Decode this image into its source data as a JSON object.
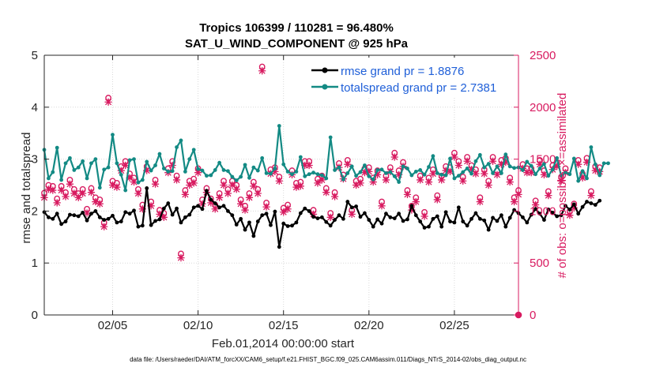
{
  "chart_data": {
    "type": "line",
    "title": "Tropics 106399 / 110281 = 96.480%",
    "subtitle": "SAT_U_WIND_COMPONENT @ 925 hPa",
    "xlabel": "Feb.01,2014 00:00:00 start",
    "ylabel": "rmse and totalspread",
    "ylabel_right": "# of obs: o=possible; ×=assimilated",
    "footer": "data file: /Users/raeder/DAI/ATM_forcXX/CAM6_setup/f.e21.FHIST_BGC.f09_025.CAM6assim.011/Diags_NTrS_2014-02/obs_diag_output.nc",
    "xlim": [
      1,
      28.75
    ],
    "ylim": [
      0,
      5
    ],
    "ylim_right": [
      0,
      2500
    ],
    "x_ticks": [
      5,
      10,
      15,
      20,
      25
    ],
    "x_tick_labels": [
      "02/05",
      "02/10",
      "02/15",
      "02/20",
      "02/25"
    ],
    "y_ticks": [
      "0",
      "1",
      "2",
      "3",
      "4",
      "5"
    ],
    "y_ticks_right": [
      "0",
      "500",
      "1000",
      "1500",
      "2000",
      "2500"
    ],
    "colors": {
      "rmse": "#000000",
      "spread": "#138a84",
      "obs": "#d81b60",
      "legend_text": "#1f5fd8"
    },
    "x_start": 1.0,
    "x_step": 0.25,
    "series": [
      {
        "name": "rmse grand pr = 1.8876",
        "key": "rmse",
        "values": [
          1.98,
          1.88,
          1.85,
          1.95,
          1.75,
          1.8,
          1.93,
          1.92,
          1.9,
          1.97,
          1.82,
          1.95,
          2.0,
          1.88,
          1.83,
          1.85,
          1.91,
          1.78,
          1.8,
          1.98,
          1.95,
          2.01,
          1.7,
          1.72,
          2.44,
          1.73,
          1.81,
          1.84,
          2.05,
          2.15,
          1.93,
          2.05,
          1.78,
          1.88,
          1.93,
          2.07,
          2.1,
          2.04,
          2.39,
          2.22,
          2.15,
          2.07,
          2.1,
          2.0,
          1.92,
          1.74,
          1.85,
          1.64,
          1.78,
          1.52,
          1.8,
          1.92,
          1.95,
          1.73,
          1.99,
          1.31,
          1.76,
          1.71,
          1.72,
          1.78,
          1.96,
          2.05,
          2.0,
          1.89,
          1.86,
          1.88,
          1.79,
          1.72,
          1.83,
          1.92,
          1.85,
          2.18,
          2.07,
          2.09,
          1.89,
          1.96,
          1.83,
          1.7,
          1.84,
          1.76,
          1.95,
          1.88,
          1.86,
          1.95,
          1.81,
          1.84,
          2.1,
          1.92,
          1.8,
          1.68,
          1.7,
          1.85,
          1.9,
          1.7,
          1.98,
          1.8,
          1.78,
          2.07,
          1.8,
          1.72,
          1.85,
          1.96,
          1.85,
          1.82,
          1.64,
          1.87,
          1.81,
          1.92,
          1.7,
          1.87,
          2.02,
          1.96,
          1.88,
          1.78,
          1.93,
          2.04,
          1.95,
          1.83,
          2.03,
          1.97,
          1.9,
          1.92,
          2.1,
          2.03,
          2.13,
          1.95,
          2.08,
          2.18,
          2.15,
          2.12,
          2.2
        ]
      },
      {
        "name": "totalspread grand pr = 2.7381",
        "key": "spread",
        "values": [
          3.18,
          2.63,
          2.75,
          3.22,
          2.6,
          2.92,
          3.02,
          2.79,
          2.84,
          2.96,
          2.63,
          2.92,
          3.0,
          2.45,
          2.8,
          2.84,
          3.47,
          2.92,
          2.7,
          2.4,
          2.98,
          3.0,
          2.55,
          2.6,
          2.95,
          2.78,
          2.88,
          3.1,
          2.82,
          2.76,
          2.77,
          3.23,
          3.36,
          2.76,
          3.0,
          3.18,
          2.81,
          2.78,
          2.68,
          2.69,
          2.79,
          2.93,
          2.79,
          2.77,
          2.66,
          2.59,
          2.66,
          2.89,
          2.64,
          2.84,
          2.78,
          3.02,
          2.73,
          2.72,
          2.82,
          3.64,
          2.9,
          2.76,
          2.71,
          2.76,
          3.04,
          2.67,
          2.71,
          2.74,
          2.71,
          2.69,
          2.63,
          3.42,
          2.79,
          2.84,
          2.61,
          2.73,
          2.86,
          2.68,
          2.75,
          2.88,
          2.67,
          2.61,
          2.79,
          2.8,
          2.73,
          2.75,
          2.67,
          2.56,
          2.86,
          2.82,
          2.69,
          2.76,
          2.79,
          2.7,
          2.85,
          3.06,
          2.73,
          2.7,
          2.69,
          3.01,
          2.63,
          2.68,
          2.75,
          2.82,
          2.72,
          2.96,
          3.08,
          2.84,
          2.91,
          2.73,
          2.86,
          2.73,
          3.09,
          2.86,
          2.83,
          2.84,
          2.79,
          2.95,
          2.87,
          2.71,
          2.82,
          2.91,
          2.68,
          2.8,
          3.02,
          2.68,
          2.74,
          2.71,
          3.01,
          2.58,
          2.77,
          2.63,
          3.23,
          2.9,
          2.69,
          2.92,
          2.92
        ]
      }
    ],
    "obs_series": [
      {
        "name": "possible",
        "marker": "o",
        "values": [
          1175,
          1250,
          1240,
          1120,
          1240,
          1180,
          1300,
          1210,
          1170,
          1210,
          1020,
          1220,
          1130,
          1110,
          890,
          2090,
          1290,
          1270,
          1430,
          1480,
          1360,
          1320,
          1210,
          1060,
          1430,
          1090,
          1300,
          1010,
          980,
          1410,
          1480,
          1340,
          590,
          1200,
          1290,
          1310,
          1410,
          1110,
          1220,
          1120,
          1060,
          1170,
          1290,
          1210,
          1290,
          1250,
          1110,
          1050,
          1170,
          1280,
          1210,
          2390,
          1080,
          1400,
          1420,
          1330,
          1030,
          1060,
          1390,
          1270,
          1280,
          1480,
          1480,
          1010,
          1310,
          1340,
          1220,
          980,
          1180,
          1460,
          1350,
          1490,
          1010,
          1290,
          1310,
          1410,
          1420,
          1320,
          1390,
          1090,
          1340,
          1420,
          1560,
          1390,
          1470,
          1200,
          1050,
          1130,
          1340,
          990,
          1320,
          1400,
          1150,
          1340,
          1430,
          1420,
          1560,
          1480,
          1330,
          1520,
          1440,
          1400,
          1130,
          1400,
          1290,
          1520,
          1390,
          1490,
          1510,
          1320,
          1130,
          1200,
          1450,
          1410,
          1410,
          1100,
          1490,
          1390,
          1190,
          1440,
          1470,
          1330,
          1410,
          1000,
          1070,
          1490,
          1360,
          1510,
          1190,
          1430,
          1420
        ]
      },
      {
        "name": "assimilated",
        "marker": "x",
        "values": [
          1130,
          1210,
          1200,
          1080,
          1200,
          1140,
          1260,
          1170,
          1130,
          1170,
          980,
          1180,
          1090,
          1070,
          850,
          2050,
          1250,
          1230,
          1390,
          1440,
          1320,
          1280,
          1170,
          1020,
          1390,
          1050,
          1260,
          970,
          940,
          1370,
          1440,
          1300,
          550,
          1160,
          1250,
          1270,
          1370,
          1070,
          1180,
          1080,
          1020,
          1130,
          1250,
          1170,
          1250,
          1210,
          1070,
          1010,
          1130,
          1240,
          1170,
          2350,
          1040,
          1360,
          1380,
          1290,
          990,
          1020,
          1350,
          1230,
          1240,
          1440,
          1440,
          970,
          1270,
          1300,
          1180,
          940,
          1140,
          1420,
          1310,
          1450,
          970,
          1250,
          1270,
          1370,
          1380,
          1280,
          1350,
          1050,
          1300,
          1380,
          1520,
          1350,
          1430,
          1160,
          1010,
          1090,
          1300,
          950,
          1280,
          1360,
          1110,
          1300,
          1390,
          1380,
          1520,
          1440,
          1290,
          1480,
          1400,
          1360,
          1090,
          1360,
          1250,
          1480,
          1350,
          1450,
          1470,
          1280,
          1090,
          1160,
          1410,
          1370,
          1370,
          1060,
          1450,
          1350,
          1150,
          1400,
          1430,
          1290,
          1370,
          960,
          1030,
          1450,
          1320,
          1470,
          1150,
          1390,
          1380
        ]
      }
    ]
  }
}
